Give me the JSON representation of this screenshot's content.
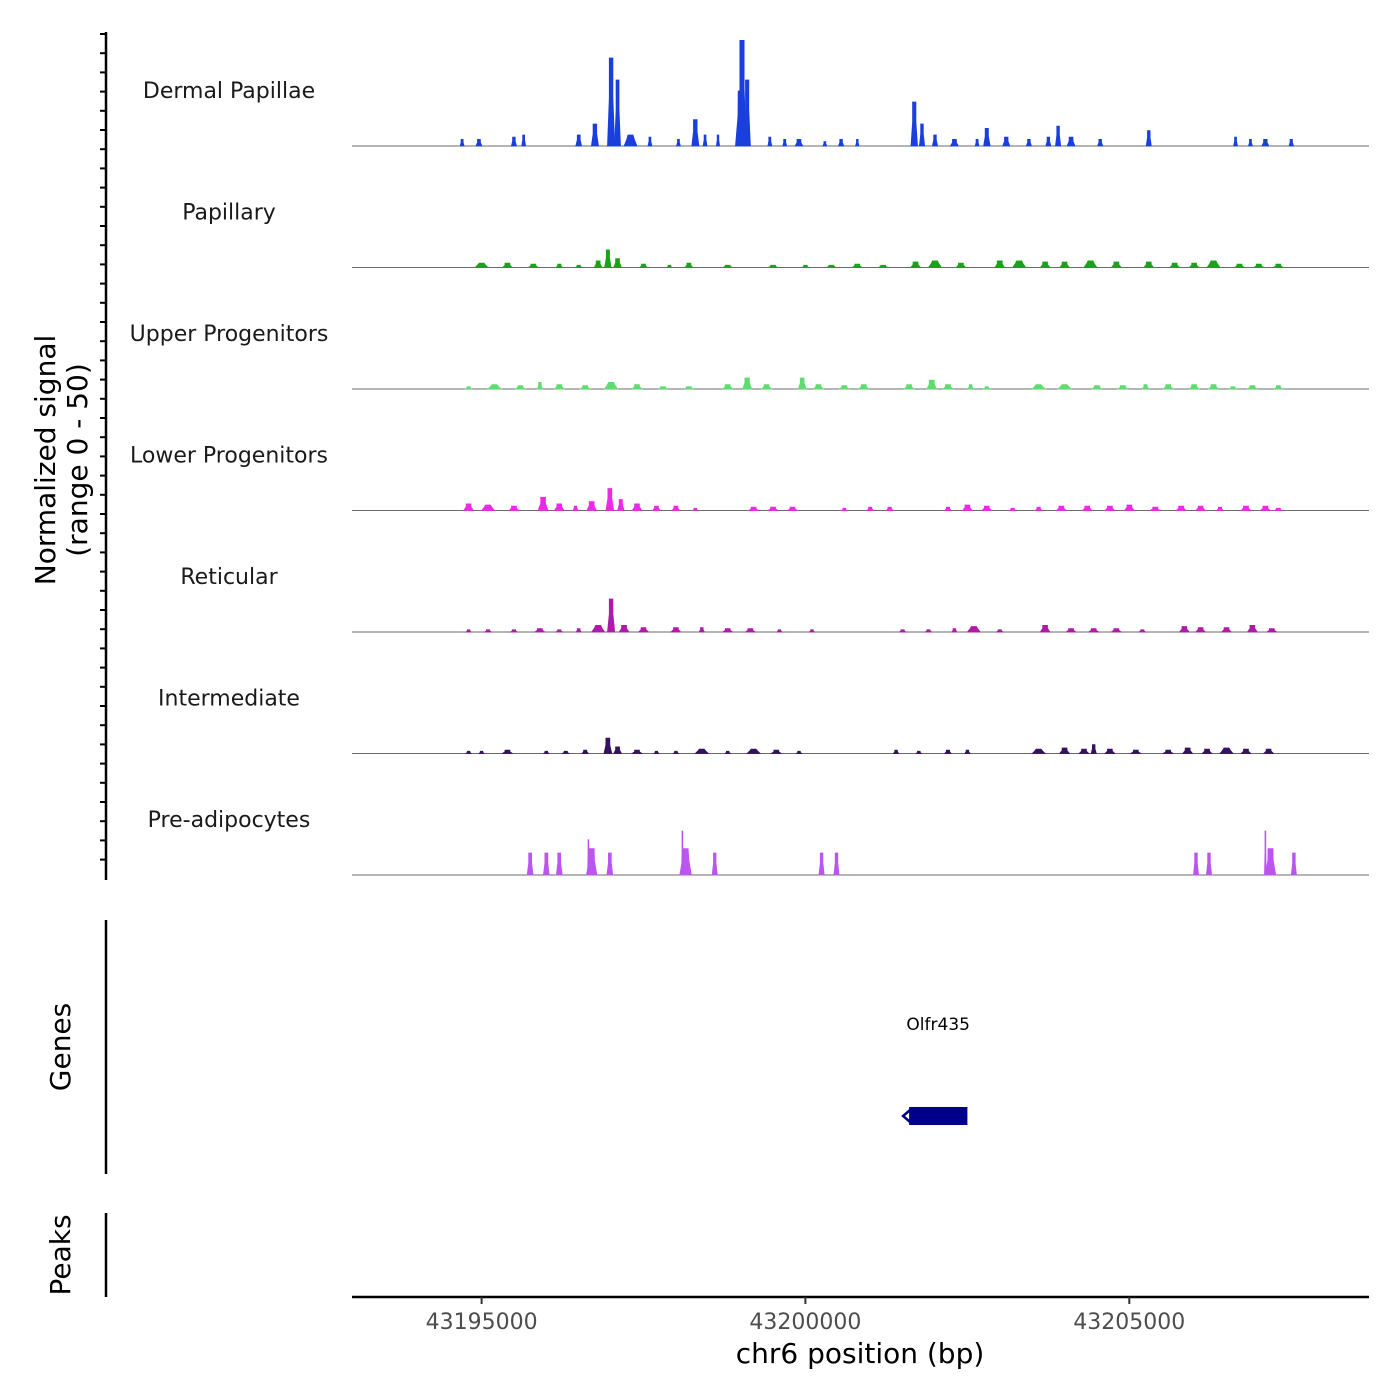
{
  "chart_data": {
    "type": "area",
    "chromosome": "chr6",
    "xlabel": "chr6 position (bp)",
    "xlim": [
      43193000,
      43208700
    ],
    "x_ticks": [
      43195000,
      43200000,
      43205000
    ],
    "x_tick_labels": [
      "43195000",
      "43200000",
      "43205000"
    ],
    "ylabel_line1": "Normalized signal",
    "ylabel_line2": "(range 0 - 50)",
    "ylim": [
      0,
      50
    ],
    "tracks": [
      {
        "name": "Dermal Papillae",
        "color": "#1a3fdc",
        "peaks": [
          [
            43194700,
            3,
            60
          ],
          [
            43194960,
            3,
            90
          ],
          [
            43195500,
            4,
            80
          ],
          [
            43195650,
            5,
            60
          ],
          [
            43196500,
            5,
            90
          ],
          [
            43196750,
            10,
            110
          ],
          [
            43197000,
            40,
            110
          ],
          [
            43197100,
            30,
            90
          ],
          [
            43197300,
            5,
            200
          ],
          [
            43197600,
            4,
            60
          ],
          [
            43198040,
            3,
            60
          ],
          [
            43198300,
            12,
            110
          ],
          [
            43198450,
            5,
            60
          ],
          [
            43198650,
            5,
            50
          ],
          [
            43199020,
            48,
            130
          ],
          [
            43199100,
            30,
            100
          ],
          [
            43199000,
            25,
            160
          ],
          [
            43199450,
            4,
            60
          ],
          [
            43199680,
            3,
            60
          ],
          [
            43199900,
            3,
            120
          ],
          [
            43200300,
            2,
            60
          ],
          [
            43200550,
            3,
            80
          ],
          [
            43200800,
            3,
            50
          ],
          [
            43201680,
            20,
            100
          ],
          [
            43201800,
            10,
            80
          ],
          [
            43202000,
            5,
            80
          ],
          [
            43202300,
            3,
            120
          ],
          [
            43202800,
            8,
            100
          ],
          [
            43202650,
            3,
            60
          ],
          [
            43203100,
            4,
            110
          ],
          [
            43203450,
            3,
            80
          ],
          [
            43203750,
            4,
            80
          ],
          [
            43203900,
            9,
            80
          ],
          [
            43204100,
            4,
            120
          ],
          [
            43204550,
            3,
            80
          ],
          [
            43205300,
            7,
            80
          ],
          [
            43206640,
            4,
            60
          ],
          [
            43206870,
            3,
            60
          ],
          [
            43207100,
            3,
            110
          ],
          [
            43207500,
            3,
            70
          ]
        ]
      },
      {
        "name": "Papillary",
        "color": "#1aa31a",
        "peaks": [
          [
            43195000,
            2,
            200
          ],
          [
            43195400,
            2,
            150
          ],
          [
            43195800,
            1.5,
            150
          ],
          [
            43196200,
            1.5,
            100
          ],
          [
            43196500,
            1,
            100
          ],
          [
            43196800,
            3,
            120
          ],
          [
            43196950,
            8,
            100
          ],
          [
            43197100,
            4,
            120
          ],
          [
            43197500,
            1.5,
            120
          ],
          [
            43197900,
            1,
            80
          ],
          [
            43198200,
            2,
            120
          ],
          [
            43198800,
            1,
            150
          ],
          [
            43199500,
            1,
            150
          ],
          [
            43200000,
            1,
            100
          ],
          [
            43200400,
            1,
            150
          ],
          [
            43200800,
            1.5,
            150
          ],
          [
            43201200,
            1,
            150
          ],
          [
            43201700,
            2.5,
            150
          ],
          [
            43202000,
            3,
            200
          ],
          [
            43202400,
            2,
            150
          ],
          [
            43203000,
            3,
            150
          ],
          [
            43203300,
            3,
            200
          ],
          [
            43203700,
            2.5,
            150
          ],
          [
            43204000,
            2.5,
            150
          ],
          [
            43204400,
            3,
            200
          ],
          [
            43204800,
            2.5,
            150
          ],
          [
            43205300,
            2.5,
            150
          ],
          [
            43205700,
            2,
            150
          ],
          [
            43206000,
            2,
            150
          ],
          [
            43206300,
            3,
            200
          ],
          [
            43206700,
            1.5,
            150
          ],
          [
            43207000,
            1.5,
            150
          ],
          [
            43207300,
            1.5,
            150
          ]
        ]
      },
      {
        "name": "Upper Progenitors",
        "color": "#5fdc6f",
        "peaks": [
          [
            43194800,
            1,
            100
          ],
          [
            43195200,
            2,
            200
          ],
          [
            43195600,
            1.5,
            150
          ],
          [
            43195900,
            3,
            80
          ],
          [
            43196200,
            2,
            150
          ],
          [
            43196600,
            1.5,
            150
          ],
          [
            43197000,
            3,
            200
          ],
          [
            43197400,
            2,
            150
          ],
          [
            43197800,
            1,
            150
          ],
          [
            43198200,
            1,
            150
          ],
          [
            43198800,
            2,
            150
          ],
          [
            43199100,
            5,
            140
          ],
          [
            43199400,
            2,
            150
          ],
          [
            43199950,
            5,
            120
          ],
          [
            43200200,
            2,
            150
          ],
          [
            43200600,
            1.5,
            150
          ],
          [
            43200900,
            2,
            150
          ],
          [
            43201600,
            2,
            150
          ],
          [
            43201950,
            4,
            150
          ],
          [
            43202200,
            2,
            150
          ],
          [
            43202550,
            2,
            80
          ],
          [
            43202800,
            1,
            100
          ],
          [
            43203600,
            2,
            200
          ],
          [
            43204000,
            2,
            200
          ],
          [
            43204500,
            1.5,
            150
          ],
          [
            43204900,
            1.5,
            150
          ],
          [
            43205250,
            2,
            100
          ],
          [
            43205600,
            2,
            150
          ],
          [
            43206000,
            2,
            150
          ],
          [
            43206300,
            2,
            150
          ],
          [
            43206600,
            1,
            120
          ],
          [
            43206900,
            1.5,
            150
          ],
          [
            43207300,
            1.5,
            120
          ]
        ]
      },
      {
        "name": "Lower Progenitors",
        "color": "#ec2ae6",
        "peaks": [
          [
            43194800,
            3,
            150
          ],
          [
            43195100,
            2.5,
            200
          ],
          [
            43195500,
            2,
            150
          ],
          [
            43195950,
            6,
            150
          ],
          [
            43196200,
            3,
            150
          ],
          [
            43196450,
            2,
            80
          ],
          [
            43196700,
            4,
            150
          ],
          [
            43196980,
            10,
            120
          ],
          [
            43197150,
            5,
            100
          ],
          [
            43197400,
            3,
            150
          ],
          [
            43197700,
            2,
            120
          ],
          [
            43198000,
            2,
            120
          ],
          [
            43198300,
            1,
            80
          ],
          [
            43199200,
            1.5,
            150
          ],
          [
            43199500,
            1.5,
            150
          ],
          [
            43199800,
            1.5,
            150
          ],
          [
            43200600,
            1,
            80
          ],
          [
            43201000,
            1.5,
            100
          ],
          [
            43201300,
            1.5,
            100
          ],
          [
            43202200,
            1.5,
            100
          ],
          [
            43202500,
            2.5,
            150
          ],
          [
            43202800,
            2,
            150
          ],
          [
            43203200,
            1,
            100
          ],
          [
            43203600,
            1.5,
            100
          ],
          [
            43203950,
            2,
            150
          ],
          [
            43204350,
            2,
            150
          ],
          [
            43204700,
            2,
            150
          ],
          [
            43205000,
            2.5,
            150
          ],
          [
            43205400,
            1.5,
            150
          ],
          [
            43205800,
            2,
            150
          ],
          [
            43206100,
            2,
            150
          ],
          [
            43206400,
            1.5,
            100
          ],
          [
            43206800,
            2,
            150
          ],
          [
            43207100,
            2,
            150
          ],
          [
            43207300,
            1,
            120
          ]
        ]
      },
      {
        "name": "Reticular",
        "color": "#b01aa8",
        "peaks": [
          [
            43194800,
            1,
            80
          ],
          [
            43195100,
            1,
            100
          ],
          [
            43195500,
            1,
            100
          ],
          [
            43195900,
            1.5,
            150
          ],
          [
            43196200,
            1,
            100
          ],
          [
            43196500,
            1.5,
            80
          ],
          [
            43196800,
            3,
            200
          ],
          [
            43197000,
            15,
            110
          ],
          [
            43197200,
            3,
            150
          ],
          [
            43197500,
            2,
            150
          ],
          [
            43198000,
            2,
            150
          ],
          [
            43198400,
            2,
            80
          ],
          [
            43198800,
            1.5,
            150
          ],
          [
            43199150,
            1.5,
            150
          ],
          [
            43199600,
            1,
            80
          ],
          [
            43200100,
            1,
            80
          ],
          [
            43201500,
            1,
            100
          ],
          [
            43201900,
            1,
            100
          ],
          [
            43202300,
            1.5,
            80
          ],
          [
            43202600,
            2.5,
            200
          ],
          [
            43203000,
            1,
            100
          ],
          [
            43203700,
            3,
            150
          ],
          [
            43204100,
            1.5,
            150
          ],
          [
            43204450,
            1.5,
            150
          ],
          [
            43204800,
            1.5,
            150
          ],
          [
            43205200,
            1,
            100
          ],
          [
            43205850,
            2.5,
            150
          ],
          [
            43206100,
            2,
            150
          ],
          [
            43206500,
            2,
            150
          ],
          [
            43206900,
            3,
            150
          ],
          [
            43207200,
            1.5,
            150
          ]
        ]
      },
      {
        "name": "Intermediate",
        "color": "#35125e",
        "peaks": [
          [
            43194800,
            1,
            80
          ],
          [
            43195000,
            1,
            80
          ],
          [
            43195400,
            1.5,
            150
          ],
          [
            43196000,
            1,
            80
          ],
          [
            43196300,
            1,
            100
          ],
          [
            43196600,
            1.5,
            100
          ],
          [
            43196950,
            7,
            120
          ],
          [
            43197100,
            3,
            120
          ],
          [
            43197400,
            1.5,
            150
          ],
          [
            43197700,
            1,
            80
          ],
          [
            43198000,
            1,
            80
          ],
          [
            43198400,
            2,
            200
          ],
          [
            43198800,
            1,
            80
          ],
          [
            43199200,
            2,
            200
          ],
          [
            43199550,
            1.5,
            150
          ],
          [
            43199900,
            1,
            80
          ],
          [
            43201400,
            1.5,
            80
          ],
          [
            43201750,
            1,
            80
          ],
          [
            43202200,
            1.5,
            100
          ],
          [
            43202500,
            1.5,
            80
          ],
          [
            43203600,
            2,
            200
          ],
          [
            43204000,
            2.5,
            150
          ],
          [
            43204300,
            2,
            150
          ],
          [
            43204450,
            4,
            80
          ],
          [
            43204700,
            2,
            150
          ],
          [
            43205100,
            1.5,
            150
          ],
          [
            43205600,
            1.5,
            150
          ],
          [
            43205900,
            2.5,
            150
          ],
          [
            43206200,
            2,
            150
          ],
          [
            43206500,
            2.5,
            200
          ],
          [
            43206800,
            2,
            150
          ],
          [
            43207150,
            2,
            150
          ]
        ]
      },
      {
        "name": "Pre-adipocytes",
        "color": "#bb55f0",
        "peaks": [
          [
            43195750,
            10,
            90
          ],
          [
            43196000,
            10,
            90
          ],
          [
            43196200,
            10,
            90
          ],
          [
            43196700,
            12,
            160
          ],
          [
            43196650,
            16,
            25
          ],
          [
            43196980,
            10,
            90
          ],
          [
            43198150,
            12,
            180
          ],
          [
            43198100,
            20,
            25
          ],
          [
            43198600,
            10,
            80
          ],
          [
            43200250,
            10,
            80
          ],
          [
            43200480,
            10,
            80
          ],
          [
            43206030,
            10,
            80
          ],
          [
            43206230,
            10,
            80
          ],
          [
            43207180,
            12,
            160
          ],
          [
            43207100,
            20,
            25
          ],
          [
            43207540,
            10,
            80
          ]
        ]
      }
    ],
    "genes": [
      {
        "name": "Olfr435",
        "start": 43201600,
        "end": 43202500,
        "strand": "-",
        "color": "#00008b"
      }
    ],
    "panels": {
      "genes_title": "Genes",
      "peaks_title": "Peaks"
    }
  }
}
